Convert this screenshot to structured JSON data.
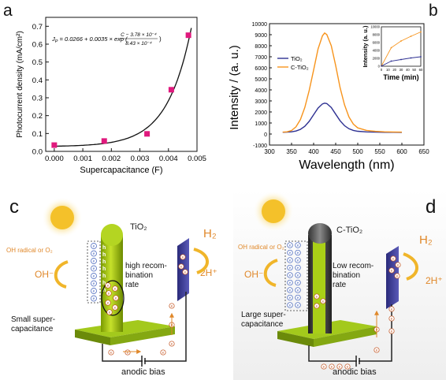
{
  "panels": {
    "a": {
      "letter": "a",
      "equation": "J_P = 0.0266 + 0.0035 × exp(−(C − 3.78 × 10⁻⁴) / (8.43 × 10⁻⁴))",
      "equation_display": {
        "lhs": "J",
        "lhs_sub": "P",
        "body": " = 0.0266 + 0.0035 × exp (",
        "numerator": "C − 3.78 × 10⁻⁴",
        "denominator": "8.43 × 10⁻⁴",
        "close": ")"
      }
    },
    "b": {
      "letter": "b"
    },
    "c": {
      "letter": "c",
      "material": "TiO₂",
      "radical": "OH radical or O₂",
      "oh_ion": "OH⁻",
      "h2": "H₂",
      "proton": "2H⁺",
      "rate_label": "high recom-\nbination\nrate",
      "cap_label": "Small super-\ncapacitance",
      "bias_label": "anodic bias"
    },
    "d": {
      "letter": "d",
      "material": "C-TiO₂",
      "radical": "OH radical or O₂",
      "oh_ion": "OH⁻",
      "h2": "H₂",
      "proton": "2H⁺",
      "rate_label": "Low recom-\nbination\nrate",
      "cap_label": "Large super-\ncapacitance",
      "bias_label": "anodic bias"
    }
  },
  "chart_data": [
    {
      "type": "scatter",
      "panel": "a",
      "xlabel": "Supercapacitance (F)",
      "ylabel": "Photocurrent density (mA/cm²)",
      "xlim": [
        -0.0003,
        0.005
      ],
      "ylim": [
        0,
        0.75
      ],
      "x_ticks": [
        0.0,
        0.001,
        0.002,
        0.003,
        0.004,
        0.005
      ],
      "x_tick_labels": [
        "0.000",
        "0.001",
        "0.002",
        "0.003",
        "0.004",
        "0.005"
      ],
      "y_ticks": [
        0.0,
        0.1,
        0.2,
        0.3,
        0.4,
        0.5,
        0.6,
        0.7
      ],
      "y_tick_labels": [
        "0.0",
        "0.1",
        "0.2",
        "0.3",
        "0.4",
        "0.5",
        "0.6",
        "0.7"
      ],
      "points": [
        {
          "x": 0.0,
          "y": 0.035
        },
        {
          "x": 0.00175,
          "y": 0.058
        },
        {
          "x": 0.00325,
          "y": 0.098
        },
        {
          "x": 0.0041,
          "y": 0.345
        },
        {
          "x": 0.0047,
          "y": 0.65
        }
      ],
      "fit": {
        "a": 0.0266,
        "b": 0.0035,
        "c0": 0.000378,
        "t": 0.000843
      },
      "marker_color": "#e0197d",
      "fit_color": "#111111",
      "grid": false
    },
    {
      "type": "line",
      "panel": "b",
      "xlabel": "Wavelength (nm)",
      "ylabel": "Intensity / (a. u.)",
      "xlim": [
        300,
        650
      ],
      "ylim": [
        -1000,
        10000
      ],
      "x_ticks": [
        300,
        350,
        400,
        450,
        500,
        550,
        600,
        650
      ],
      "x_tick_labels": [
        "300",
        "350",
        "400",
        "450",
        "500",
        "550",
        "600",
        "650"
      ],
      "y_ticks": [
        -1000,
        0,
        1000,
        2000,
        3000,
        4000,
        5000,
        6000,
        7000,
        8000,
        9000,
        10000
      ],
      "y_tick_labels": [
        "-1000",
        "0",
        "1000",
        "2000",
        "3000",
        "4000",
        "5000",
        "6000",
        "7000",
        "8000",
        "9000",
        "10000"
      ],
      "legend_position": "middle-left",
      "series": [
        {
          "name": "TiO₂",
          "color": "#2e3192",
          "x": [
            330,
            340,
            350,
            360,
            370,
            380,
            390,
            400,
            410,
            420,
            425,
            430,
            440,
            450,
            460,
            470,
            480,
            490,
            500,
            520,
            540,
            560,
            580,
            600
          ],
          "y": [
            160,
            170,
            200,
            270,
            420,
            700,
            1150,
            1750,
            2350,
            2730,
            2800,
            2760,
            2400,
            1800,
            1200,
            760,
            480,
            330,
            250,
            190,
            170,
            160,
            155,
            150
          ]
        },
        {
          "name": "C-TiO₂",
          "color": "#f7941d",
          "x": [
            330,
            340,
            350,
            360,
            370,
            380,
            390,
            400,
            410,
            420,
            425,
            430,
            440,
            450,
            460,
            470,
            480,
            490,
            500,
            520,
            540,
            560,
            580,
            600
          ],
          "y": [
            170,
            200,
            320,
            650,
            1300,
            2400,
            3950,
            5800,
            7700,
            8900,
            9150,
            9000,
            8000,
            6200,
            4200,
            2650,
            1550,
            900,
            560,
            330,
            240,
            200,
            185,
            175
          ]
        }
      ],
      "inset": {
        "type": "line",
        "xlabel": "Time (min)",
        "ylabel": "Intensity (a. u.)",
        "xlim": [
          0,
          60
        ],
        "ylim": [
          0,
          10000
        ],
        "x_ticks": [
          0,
          10,
          20,
          30,
          40,
          50,
          60
        ],
        "x_tick_labels": [
          "0",
          "10",
          "20",
          "30",
          "40",
          "50",
          "60"
        ],
        "y_ticks": [
          0,
          2000,
          4000,
          6000,
          8000,
          10000
        ],
        "y_tick_labels": [
          "0",
          "2000",
          "4000",
          "6000",
          "8000",
          "10000"
        ],
        "series": [
          {
            "name": "C-TiO₂",
            "color": "#f7941d",
            "x": [
              0,
              15,
              30,
              45,
              60
            ],
            "y": [
              50,
              4700,
              6400,
              7600,
              8700
            ]
          },
          {
            "name": "TiO₂",
            "color": "#2e3192",
            "x": [
              0,
              15,
              30,
              45,
              60
            ],
            "y": [
              50,
              1300,
              1700,
              2100,
              2400
            ]
          }
        ]
      }
    }
  ]
}
